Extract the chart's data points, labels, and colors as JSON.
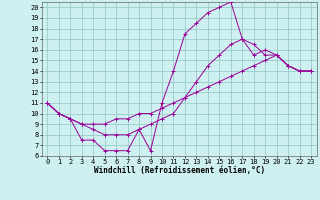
{
  "title": "",
  "xlabel": "Windchill (Refroidissement éolien,°C)",
  "ylabel": "",
  "xlim": [
    -0.5,
    23.5
  ],
  "ylim": [
    6,
    20.5
  ],
  "xticks": [
    0,
    1,
    2,
    3,
    4,
    5,
    6,
    7,
    8,
    9,
    10,
    11,
    12,
    13,
    14,
    15,
    16,
    17,
    18,
    19,
    20,
    21,
    22,
    23
  ],
  "yticks": [
    6,
    7,
    8,
    9,
    10,
    11,
    12,
    13,
    14,
    15,
    16,
    17,
    18,
    19,
    20
  ],
  "bg_color": "#cff0f0",
  "line_color": "#990099",
  "grid_color": "#99cccc",
  "series1_x": [
    0,
    1,
    2,
    3,
    4,
    5,
    6,
    7,
    8,
    9,
    10,
    11,
    12,
    13,
    14,
    15,
    16,
    17,
    18,
    19,
    20,
    21,
    22,
    23
  ],
  "series1_y": [
    11.0,
    10.0,
    9.5,
    7.5,
    7.5,
    6.5,
    6.5,
    6.5,
    8.5,
    6.5,
    11.0,
    14.0,
    17.5,
    18.5,
    19.5,
    20.0,
    20.5,
    17.0,
    15.5,
    16.0,
    15.5,
    14.5,
    14.0,
    14.0
  ],
  "series2_x": [
    0,
    1,
    2,
    3,
    4,
    5,
    6,
    7,
    8,
    9,
    10,
    11,
    12,
    13,
    14,
    15,
    16,
    17,
    18,
    19,
    20,
    21,
    22,
    23
  ],
  "series2_y": [
    11.0,
    10.0,
    9.5,
    9.0,
    9.0,
    9.0,
    9.5,
    9.5,
    10.0,
    10.0,
    10.5,
    11.0,
    11.5,
    12.0,
    12.5,
    13.0,
    13.5,
    14.0,
    14.5,
    15.0,
    15.5,
    14.5,
    14.0,
    14.0
  ],
  "series3_x": [
    0,
    1,
    2,
    3,
    4,
    5,
    6,
    7,
    8,
    9,
    10,
    11,
    12,
    13,
    14,
    15,
    16,
    17,
    18,
    19,
    20,
    21,
    22,
    23
  ],
  "series3_y": [
    11.0,
    10.0,
    9.5,
    9.0,
    8.5,
    8.0,
    8.0,
    8.0,
    8.5,
    9.0,
    9.5,
    10.0,
    11.5,
    13.0,
    14.5,
    15.5,
    16.5,
    17.0,
    16.5,
    15.5,
    15.5,
    14.5,
    14.0,
    14.0
  ],
  "tick_fontsize": 5.0,
  "xlabel_fontsize": 5.5
}
